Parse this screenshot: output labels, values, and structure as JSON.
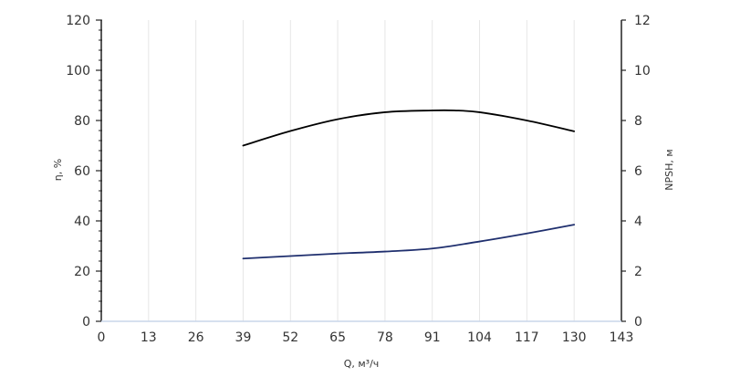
{
  "chart_data": {
    "type": "line",
    "xlabel": "Q, м³/ч",
    "ylabel": "η, %",
    "y2label": "NPSH, м",
    "xlim": [
      0,
      143
    ],
    "ylim": [
      0,
      120
    ],
    "y2lim": [
      0,
      12
    ],
    "xticks": [
      "0",
      "13",
      "26",
      "39",
      "52",
      "65",
      "78",
      "91",
      "104",
      "117",
      "130",
      "143"
    ],
    "yticks": [
      "0",
      "20",
      "40",
      "60",
      "80",
      "100",
      "120"
    ],
    "y2ticks": [
      "0",
      "2",
      "4",
      "6",
      "8",
      "10",
      "12"
    ],
    "grid": "vertical",
    "series": [
      {
        "axis": "left",
        "color": "#000000",
        "x": [
          39,
          52,
          65,
          78,
          91,
          97,
          104,
          117,
          130
        ],
        "y": [
          70.0,
          75.8,
          80.5,
          83.3,
          84.0,
          84.0,
          83.3,
          80.0,
          75.7
        ]
      },
      {
        "axis": "right",
        "color": "#1f2f6e",
        "x": [
          39,
          52,
          65,
          78,
          91,
          104,
          117,
          130
        ],
        "y": [
          2.5,
          2.6,
          2.7,
          2.78,
          2.9,
          3.18,
          3.5,
          3.85
        ]
      }
    ]
  }
}
